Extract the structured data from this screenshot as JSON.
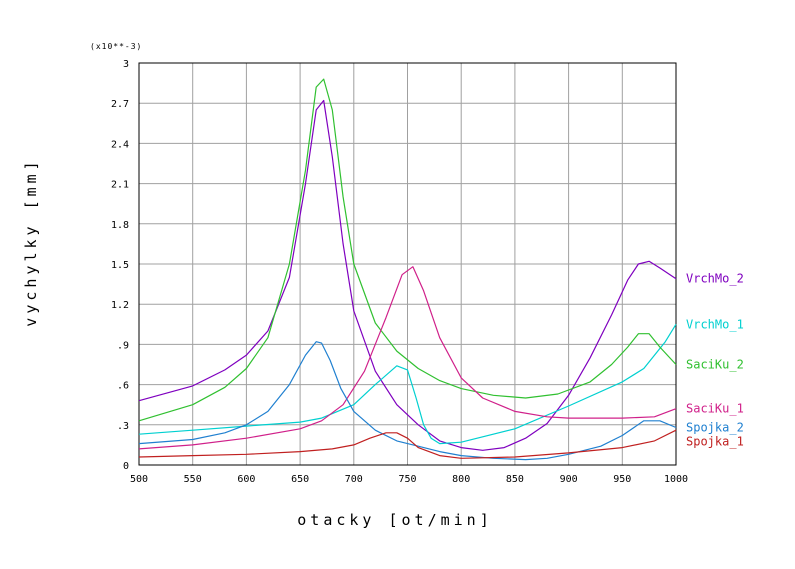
{
  "chart_data": {
    "type": "line",
    "title": "",
    "xlabel": "otacky [ot/min]",
    "ylabel": "vychylky [mm]",
    "y_multiplier_label": "(x10**-3)",
    "xlim": [
      500,
      1000
    ],
    "ylim": [
      0,
      3
    ],
    "xticks": [
      500,
      550,
      600,
      650,
      700,
      750,
      800,
      850,
      900,
      950,
      1000
    ],
    "yticks": [
      0,
      0.3,
      0.6,
      0.9,
      1.2,
      1.5,
      1.8,
      2.1,
      2.4,
      2.7,
      3
    ],
    "ytick_labels": [
      "0",
      ".3",
      ".6",
      ".9",
      "1.2",
      "1.5",
      "1.8",
      "2.1",
      "2.4",
      "2.7",
      "3"
    ],
    "grid": true,
    "legend_position": "right",
    "series": [
      {
        "name": "VrchMo_2",
        "color": "#7f00bf",
        "x": [
          500,
          550,
          580,
          600,
          620,
          640,
          655,
          665,
          672,
          680,
          690,
          700,
          720,
          740,
          760,
          780,
          800,
          820,
          840,
          860,
          880,
          900,
          920,
          940,
          955,
          965,
          975,
          985,
          1000
        ],
        "y": [
          0.48,
          0.59,
          0.71,
          0.82,
          1.0,
          1.4,
          2.1,
          2.65,
          2.72,
          2.3,
          1.65,
          1.15,
          0.7,
          0.45,
          0.3,
          0.18,
          0.13,
          0.11,
          0.13,
          0.2,
          0.31,
          0.52,
          0.8,
          1.12,
          1.38,
          1.5,
          1.52,
          1.47,
          1.39
        ]
      },
      {
        "name": "VrchMo_1",
        "color": "#00d0d0",
        "x": [
          500,
          550,
          600,
          650,
          670,
          700,
          720,
          740,
          750,
          758,
          765,
          772,
          780,
          800,
          850,
          900,
          950,
          970,
          990,
          1000
        ],
        "y": [
          0.23,
          0.26,
          0.29,
          0.32,
          0.35,
          0.45,
          0.6,
          0.74,
          0.71,
          0.5,
          0.3,
          0.2,
          0.16,
          0.17,
          0.27,
          0.44,
          0.62,
          0.72,
          0.92,
          1.05
        ]
      },
      {
        "name": "SaciKu_2",
        "color": "#30c030",
        "x": [
          500,
          550,
          580,
          600,
          620,
          640,
          655,
          665,
          672,
          680,
          690,
          700,
          720,
          740,
          760,
          780,
          800,
          830,
          860,
          890,
          920,
          940,
          955,
          965,
          975,
          985,
          1000
        ],
        "y": [
          0.33,
          0.45,
          0.58,
          0.72,
          0.95,
          1.5,
          2.2,
          2.82,
          2.88,
          2.65,
          2.0,
          1.5,
          1.06,
          0.85,
          0.72,
          0.63,
          0.57,
          0.52,
          0.5,
          0.53,
          0.62,
          0.75,
          0.88,
          0.98,
          0.98,
          0.88,
          0.75
        ]
      },
      {
        "name": "SaciKu_1",
        "color": "#d0208a",
        "x": [
          500,
          550,
          600,
          650,
          670,
          690,
          710,
          730,
          745,
          755,
          765,
          780,
          800,
          820,
          850,
          880,
          900,
          950,
          980,
          1000
        ],
        "y": [
          0.12,
          0.15,
          0.2,
          0.27,
          0.33,
          0.45,
          0.7,
          1.1,
          1.42,
          1.48,
          1.3,
          0.95,
          0.65,
          0.5,
          0.4,
          0.36,
          0.35,
          0.35,
          0.36,
          0.42
        ]
      },
      {
        "name": "Spojka_2",
        "color": "#2080d0",
        "x": [
          500,
          550,
          580,
          600,
          620,
          640,
          655,
          665,
          670,
          678,
          688,
          700,
          720,
          740,
          760,
          780,
          800,
          830,
          860,
          880,
          900,
          930,
          950,
          970,
          985,
          1000
        ],
        "y": [
          0.16,
          0.19,
          0.24,
          0.3,
          0.4,
          0.6,
          0.82,
          0.92,
          0.91,
          0.78,
          0.57,
          0.4,
          0.26,
          0.18,
          0.14,
          0.1,
          0.07,
          0.05,
          0.04,
          0.05,
          0.08,
          0.14,
          0.22,
          0.33,
          0.33,
          0.28
        ]
      },
      {
        "name": "Spojka_1",
        "color": "#c02020",
        "x": [
          500,
          550,
          600,
          650,
          680,
          700,
          715,
          730,
          740,
          750,
          760,
          780,
          800,
          850,
          900,
          950,
          980,
          1000
        ],
        "y": [
          0.06,
          0.07,
          0.08,
          0.1,
          0.12,
          0.15,
          0.2,
          0.24,
          0.24,
          0.2,
          0.13,
          0.07,
          0.05,
          0.06,
          0.09,
          0.13,
          0.18,
          0.26
        ]
      }
    ]
  }
}
